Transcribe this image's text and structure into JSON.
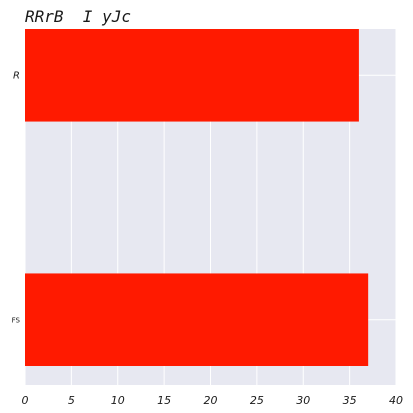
{
  "chart_data": {
    "type": "bar",
    "orientation": "horizontal",
    "title": "RRrB  I yJc",
    "categories": [
      "R",
      "FS"
    ],
    "values": [
      36,
      37
    ],
    "xlabel": "",
    "ylabel": "",
    "xlim": [
      0,
      40
    ],
    "xticks": [
      "0",
      "5",
      "10",
      "15",
      "20",
      "25",
      "30",
      "35",
      "40"
    ],
    "grid": true,
    "legend": "none",
    "bar_color": "#ff1a00",
    "background_color": "#e7e8f1",
    "grid_color": "#ffffff"
  }
}
